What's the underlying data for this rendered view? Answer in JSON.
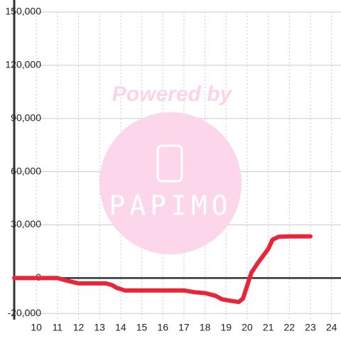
{
  "chart_data": {
    "type": "line",
    "x": [
      8.95,
      11,
      11.3,
      11.8,
      12,
      13.3,
      13.6,
      13.8,
      14.2,
      15,
      17,
      17.5,
      18,
      18.5,
      18.8,
      19.3,
      19.6,
      19.8,
      20.2,
      20.5,
      21,
      21.2,
      21.5,
      22,
      23
    ],
    "values": [
      0,
      0,
      -1000,
      -2500,
      -3000,
      -3000,
      -4000,
      -5500,
      -7000,
      -7000,
      -7000,
      -8000,
      -8500,
      -10000,
      -12000,
      -13000,
      -13500,
      -11600,
      3000,
      8400,
      16400,
      21600,
      23300,
      23500,
      23500
    ],
    "color": "#e8253a",
    "xlim": [
      8.95,
      24.45
    ],
    "ylim": [
      -23500,
      150000
    ],
    "xticks": [
      10,
      11,
      12,
      13,
      14,
      15,
      16,
      17,
      18,
      19,
      20,
      21,
      22,
      23,
      24
    ],
    "yticks": [
      {
        "value": -20000,
        "label": "-20,000"
      },
      0,
      {
        "value": 30000,
        "label": "30,000"
      },
      {
        "value": 60000,
        "label": "60,000"
      },
      {
        "value": 90000,
        "label": "90,000"
      },
      {
        "value": 120000,
        "label": "120,000"
      },
      {
        "value": 150000,
        "label": "150,000"
      }
    ],
    "grid": true,
    "watermark": {
      "text": "Powered by",
      "logo": "PAPIMO"
    }
  }
}
